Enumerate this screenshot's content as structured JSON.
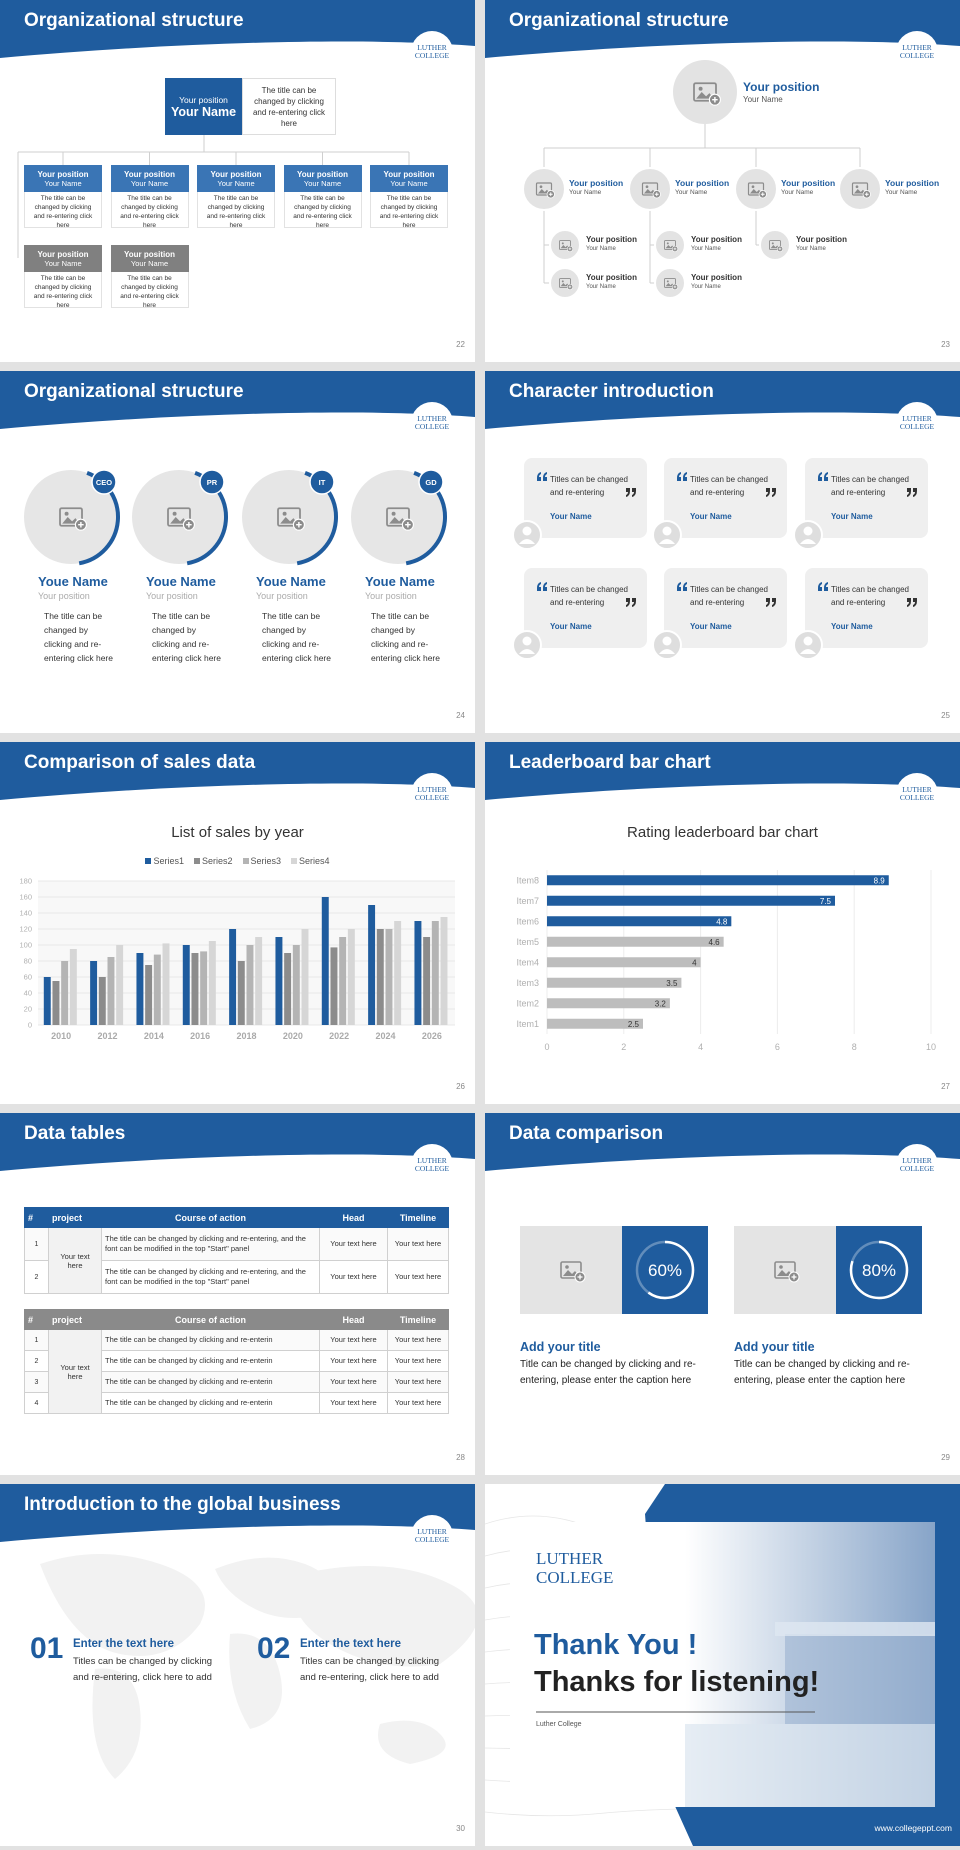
{
  "logo": {
    "line1": "LUTHER",
    "line2": "COLLEGE"
  },
  "slides": [
    {
      "title": "Organizational structure",
      "page": "22",
      "head": {
        "position": "Your position",
        "name": "Your Name",
        "text": "The title can be changed by clicking and re-entering click here"
      },
      "members": [
        {
          "position": "Your position",
          "name": "Your Name",
          "text": "The title can be changed by clicking and re-entering click here"
        },
        {
          "position": "Your position",
          "name": "Your Name",
          "text": "The title can be changed by clicking and re-entering click here"
        },
        {
          "position": "Your position",
          "name": "Your Name",
          "text": "The title can be changed by clicking and re-entering click here"
        },
        {
          "position": "Your position",
          "name": "Your Name",
          "text": "The title can be changed by clicking and re-entering click here"
        },
        {
          "position": "Your position",
          "name": "Your Name",
          "text": "The title can be changed by clicking and re-entering click here"
        },
        {
          "position": "Your position",
          "name": "Your Name",
          "text": "The title can be changed by clicking and re-entering click here"
        },
        {
          "position": "Your position",
          "name": "Your Name",
          "text": "The title can be changed by clicking and re-entering click here"
        }
      ]
    },
    {
      "title": "Organizational structure",
      "page": "23",
      "head": {
        "position": "Your position",
        "name": "Your Name"
      },
      "level2": [
        {
          "position": "Your position",
          "name": "Your Name"
        },
        {
          "position": "Your position",
          "name": "Your Name"
        },
        {
          "position": "Your position",
          "name": "Your Name"
        },
        {
          "position": "Your position",
          "name": "Your Name"
        }
      ],
      "level3": [
        {
          "position": "Your position",
          "name": "Your Name"
        },
        {
          "position": "Your position",
          "name": "Your Name"
        },
        {
          "position": "Your position",
          "name": "Your Name"
        },
        {
          "position": "Your position",
          "name": "Your Name"
        },
        {
          "position": "Your position",
          "name": "Your Name"
        }
      ]
    },
    {
      "title": "Organizational structure",
      "page": "24",
      "people": [
        {
          "tag": "CEO",
          "name": "Youe Name",
          "position": "Your position",
          "text": "The title can be changed by clicking and re-entering click here"
        },
        {
          "tag": "PR",
          "name": "Youe Name",
          "position": "Your position",
          "text": "The title can be changed by clicking and re-entering click here"
        },
        {
          "tag": "IT",
          "name": "Youe Name",
          "position": "Your position",
          "text": "The title can be changed by clicking and re-entering click here"
        },
        {
          "tag": "GD",
          "name": "Youe Name",
          "position": "Your position",
          "text": "The title can be changed by clicking and re-entering click here"
        }
      ]
    },
    {
      "title": "Character introduction",
      "page": "25",
      "cards": [
        {
          "text": "Titles can be changed and re-entering",
          "name": "Your Name"
        },
        {
          "text": "Titles can be changed and re-entering",
          "name": "Your Name"
        },
        {
          "text": "Titles can be changed and re-entering",
          "name": "Your Name"
        },
        {
          "text": "Titles can be changed and re-entering",
          "name": "Your Name"
        },
        {
          "text": "Titles can be changed and re-entering",
          "name": "Your Name"
        },
        {
          "text": "Titles can be changed and re-entering",
          "name": "Your Name"
        }
      ]
    },
    {
      "title": "Comparison of sales data",
      "page": "26",
      "chart_data": {
        "type": "bar",
        "title": "List of sales by year",
        "categories": [
          "2010",
          "2012",
          "2014",
          "2016",
          "2018",
          "2020",
          "2022",
          "2024",
          "2026"
        ],
        "series": [
          {
            "name": "Series1",
            "color": "#1f5c9e",
            "values": [
              60,
              80,
              90,
              100,
              120,
              110,
              160,
              150,
              130
            ]
          },
          {
            "name": "Series2",
            "color": "#8c8c8c",
            "values": [
              55,
              60,
              75,
              90,
              80,
              90,
              97,
              120,
              110
            ]
          },
          {
            "name": "Series3",
            "color": "#b4b4b4",
            "values": [
              80,
              85,
              88,
              92,
              100,
              100,
              110,
              120,
              130
            ]
          },
          {
            "name": "Series4",
            "color": "#d6d6d6",
            "values": [
              95,
              100,
              102,
              105,
              110,
              120,
              120,
              130,
              135
            ]
          }
        ],
        "ylim": [
          0,
          180
        ],
        "yticks": [
          0,
          20,
          40,
          60,
          80,
          100,
          120,
          140,
          160,
          180
        ],
        "grid": true
      }
    },
    {
      "title": "Leaderboard bar chart",
      "page": "27",
      "chart_data": {
        "type": "barh",
        "title": "Rating leaderboard bar chart",
        "categories": [
          "Item1",
          "Item2",
          "Item3",
          "Item4",
          "Item5",
          "Item6",
          "Item7",
          "Item8"
        ],
        "values": [
          2.5,
          3.2,
          3.5,
          4,
          4.6,
          4.8,
          7.5,
          8.9
        ],
        "colors": [
          "#bdbdbd",
          "#bdbdbd",
          "#bdbdbd",
          "#bdbdbd",
          "#bdbdbd",
          "#1f5c9e",
          "#1f5c9e",
          "#1f5c9e"
        ],
        "xlim": [
          0,
          10
        ],
        "xticks": [
          0,
          2,
          4,
          6,
          8,
          10
        ],
        "grid": true
      }
    },
    {
      "title": "Data tables",
      "page": "28",
      "tables": [
        {
          "headers": [
            "#",
            "project",
            "Course of action",
            "Head",
            "Timeline"
          ],
          "project": "Your text here",
          "rows": [
            [
              "1",
              "The title can be changed by clicking and re-entering, and the font can be modified in the top \"Start\" panel",
              "Your text here",
              "Your text here"
            ],
            [
              "2",
              "The title can be changed by clicking and re-entering, and the font can be modified in the top \"Start\" panel",
              "Your text here",
              "Your text here"
            ]
          ]
        },
        {
          "headers": [
            "#",
            "project",
            "Course of action",
            "Head",
            "Timeline"
          ],
          "project": "Your text here",
          "rows": [
            [
              "1",
              "The title can be changed by clicking and re-enterin",
              "Your text here",
              "Your text here"
            ],
            [
              "2",
              "The title can be changed by clicking and re-enterin",
              "Your text here",
              "Your text here"
            ],
            [
              "3",
              "The title can be changed by clicking and re-enterin",
              "Your text here",
              "Your text here"
            ],
            [
              "4",
              "The title can be changed by clicking and re-enterin",
              "Your text here",
              "Your text here"
            ]
          ]
        }
      ]
    },
    {
      "title": "Data comparison",
      "page": "29",
      "panels": [
        {
          "value": 60,
          "label": "60%",
          "heading": "Add your title",
          "text": "Title can be changed by clicking and re-entering, please enter the caption here"
        },
        {
          "value": 80,
          "label": "80%",
          "heading": "Add your title",
          "text": "Title can be changed by clicking and re-entering, please enter the caption here"
        }
      ]
    },
    {
      "title": "Introduction to the global business",
      "page": "30",
      "items": [
        {
          "number": "01",
          "heading": "Enter the text here",
          "text": "Titles can be changed by clicking and re-entering, click here to add"
        },
        {
          "number": "02",
          "heading": "Enter the text here",
          "text": "Titles can be changed by clicking and re-entering, click here to add"
        }
      ]
    },
    {
      "thanks": "Thank You !",
      "subtitle": "Thanks for listening!",
      "organization": "Luther College",
      "url": "www.collegeppt.com"
    }
  ]
}
